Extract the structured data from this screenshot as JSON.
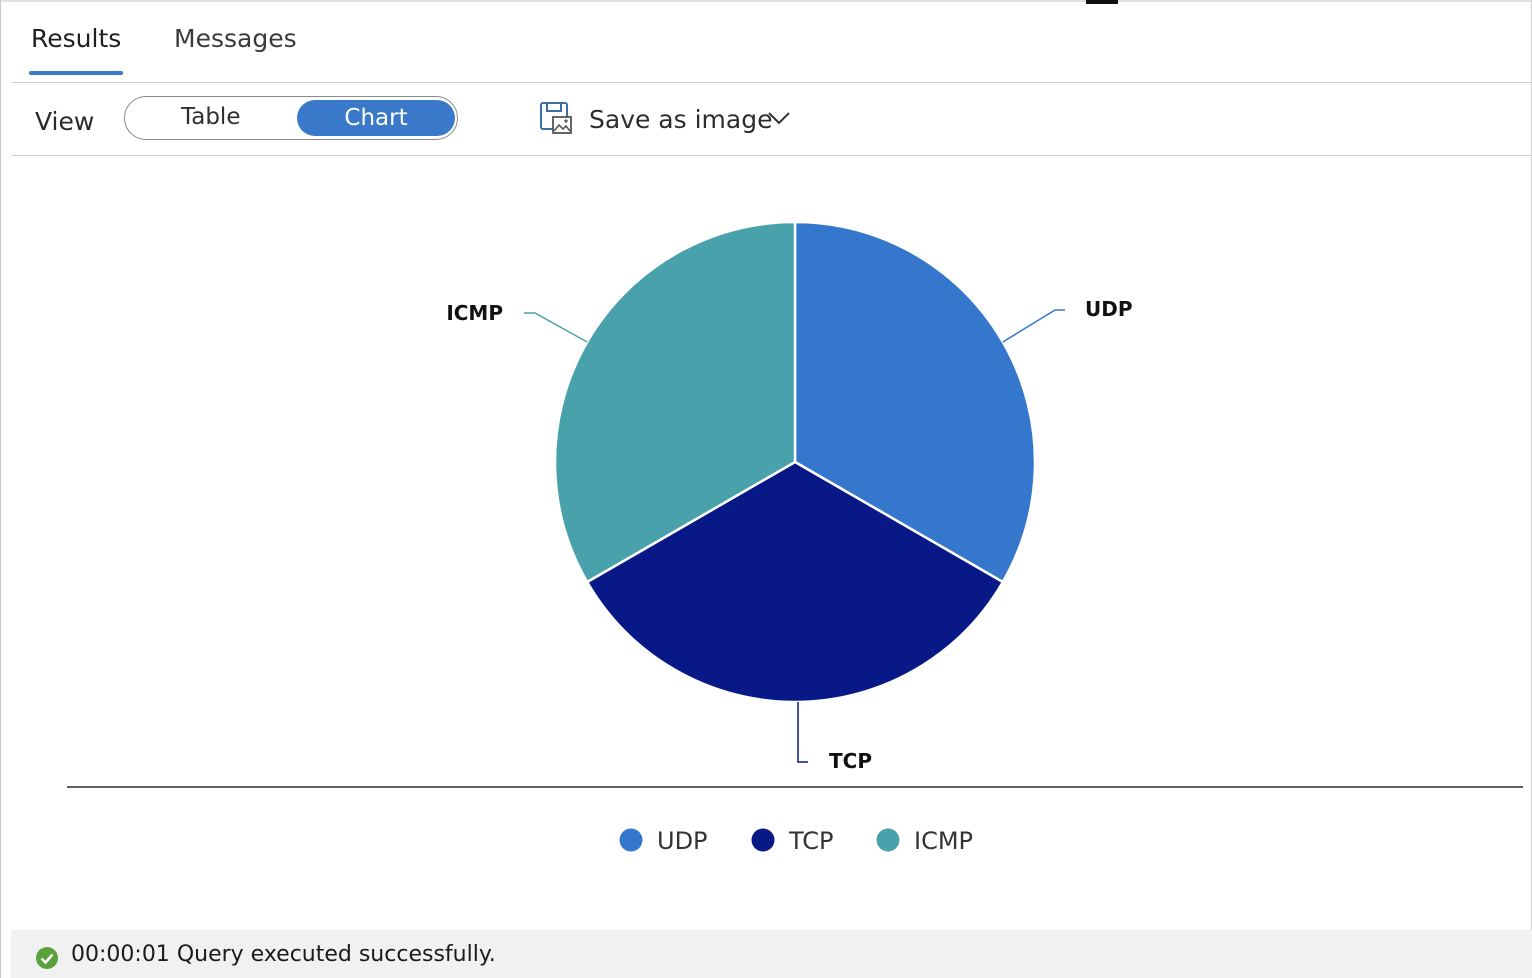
{
  "tabs": [
    {
      "label": "Results",
      "active": true
    },
    {
      "label": "Messages",
      "active": false
    }
  ],
  "toolbar": {
    "view_label": "View",
    "toggle": {
      "options": [
        "Table",
        "Chart"
      ],
      "selected": "Chart"
    },
    "save_label": "Save as image",
    "save_icon": "save-image-icon",
    "dropdown_icon": "chevron-down-icon"
  },
  "colors": {
    "accent": "#3a78c9",
    "udp": "#3577cd",
    "tcp": "#081887",
    "icmp": "#49a1ab",
    "success": "#5aa13c"
  },
  "chart_data": {
    "type": "pie",
    "categories": [
      "UDP",
      "TCP",
      "ICMP"
    ],
    "values": [
      33.3,
      33.3,
      33.3
    ],
    "slice_labels": [
      "UDP",
      "TCP",
      "ICMP"
    ],
    "legend": [
      "UDP",
      "TCP",
      "ICMP"
    ],
    "legend_position": "bottom"
  },
  "status": {
    "icon": "check-circle-icon",
    "time": "00:00:01",
    "message": "Query executed successfully."
  }
}
